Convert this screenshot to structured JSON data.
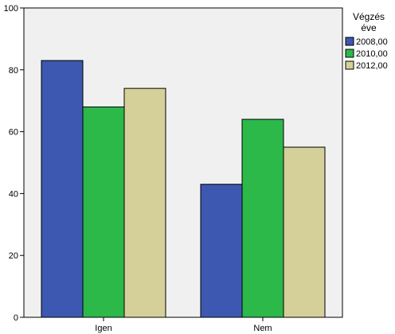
{
  "chart_data": {
    "type": "bar",
    "categories": [
      "Igen",
      "Nem"
    ],
    "series": [
      {
        "name": "2008,00",
        "values": [
          83,
          43
        ],
        "color": "#3c58b0"
      },
      {
        "name": "2010,00",
        "values": [
          68,
          64
        ],
        "color": "#2db84a"
      },
      {
        "name": "2012,00",
        "values": [
          74,
          55
        ],
        "color": "#d5cf99"
      }
    ],
    "ylim": [
      0,
      100
    ],
    "yticks": [
      0,
      20,
      40,
      60,
      80,
      100
    ],
    "title": "",
    "xlabel": "",
    "ylabel": "",
    "legend": {
      "title_lines": [
        "Végzés",
        "éve"
      ],
      "position": "right"
    },
    "plot_background": "#f0f0f0",
    "grid": false
  }
}
